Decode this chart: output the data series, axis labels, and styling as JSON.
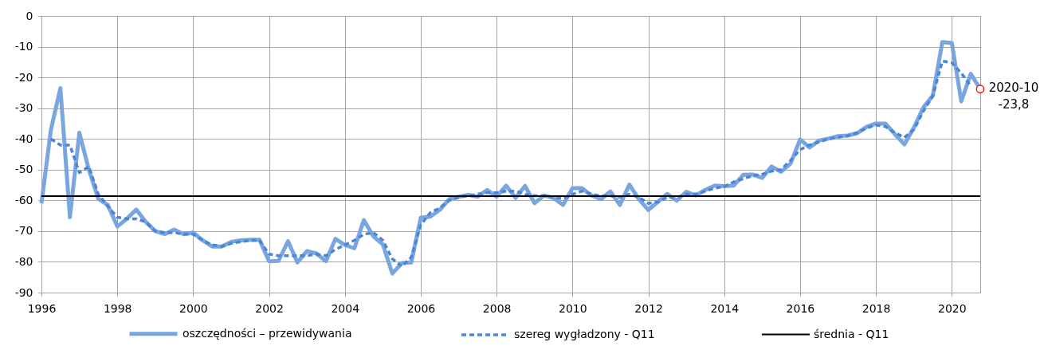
{
  "chart_data": {
    "type": "line",
    "x": [
      1996,
      1996.25,
      1996.5,
      1996.75,
      1997,
      1997.25,
      1997.5,
      1997.75,
      1998,
      1998.25,
      1998.5,
      1998.75,
      1999,
      1999.25,
      1999.5,
      1999.75,
      2000,
      2000.25,
      2000.5,
      2000.75,
      2001,
      2001.25,
      2001.5,
      2001.75,
      2002,
      2002.25,
      2002.5,
      2002.75,
      2003,
      2003.25,
      2003.5,
      2003.75,
      2004,
      2004.25,
      2004.5,
      2004.75,
      2005,
      2005.25,
      2005.5,
      2005.75,
      2006,
      2006.25,
      2006.5,
      2006.75,
      2007,
      2007.25,
      2007.5,
      2007.75,
      2008,
      2008.25,
      2008.5,
      2008.75,
      2009,
      2009.25,
      2009.5,
      2009.75,
      2010,
      2010.25,
      2010.5,
      2010.75,
      2011,
      2011.25,
      2011.5,
      2011.75,
      2012,
      2012.25,
      2012.5,
      2012.75,
      2013,
      2013.25,
      2013.5,
      2013.75,
      2014,
      2014.25,
      2014.5,
      2014.75,
      2015,
      2015.25,
      2015.5,
      2015.75,
      2016,
      2016.25,
      2016.5,
      2016.75,
      2017,
      2017.25,
      2017.5,
      2017.75,
      2018,
      2018.25,
      2018.5,
      2018.75,
      2019,
      2019.25,
      2019.5,
      2019.75,
      2020,
      2020.25,
      2020.5,
      2020.75
    ],
    "series": [
      {
        "name": "oszczędności – przewidywania",
        "color": "#7aa6e0",
        "line_style": "solid",
        "values": [
          -61,
          -37,
          -23.5,
          -65.5,
          -38,
          -50,
          -59.5,
          -61.5,
          -68.5,
          -66,
          -63,
          -67,
          -70,
          -71,
          -69.5,
          -71,
          -70.5,
          -73,
          -75,
          -75,
          -73.5,
          -73,
          -72.8,
          -72.8,
          -79.8,
          -79.7,
          -73.3,
          -80.2,
          -76.5,
          -77.3,
          -79.8,
          -72.5,
          -74.5,
          -75.6,
          -66.4,
          -71.7,
          -74.3,
          -83.8,
          -80.4,
          -80.2,
          -65.7,
          -65.3,
          -63.1,
          -59.6,
          -58.8,
          -58.2,
          -58.8,
          -56.6,
          -58.8,
          -55.2,
          -59.2,
          -55.3,
          -60.9,
          -58.4,
          -59.2,
          -61.5,
          -56,
          -56,
          -58.4,
          -59.6,
          -57.1,
          -61.5,
          -54.9,
          -59.6,
          -63.1,
          -60.5,
          -57.9,
          -60.1,
          -57.2,
          -58.4,
          -56.6,
          -55.2,
          -55.4,
          -55.2,
          -51.7,
          -51.6,
          -52.7,
          -49,
          -50.7,
          -48,
          -40.2,
          -42.8,
          -40.5,
          -39.9,
          -39.1,
          -38.9,
          -38.2,
          -36.1,
          -35,
          -35,
          -38.5,
          -41.8,
          -36.3,
          -29.8,
          -25.9,
          -8.5,
          -8.8,
          -27.8,
          -18.8,
          -23.8
        ]
      },
      {
        "name": "szereg wygładzony - Q11",
        "color": "#4a86d8",
        "line_style": "dashed",
        "values": [
          null,
          -40,
          -42,
          -42,
          -51,
          -49,
          -58,
          -62,
          -65.5,
          -66,
          -66,
          -67,
          -70,
          -70.5,
          -70.5,
          -71,
          -71,
          -73,
          -74.5,
          -75,
          -74,
          -73.5,
          -73,
          -73,
          -77.5,
          -78,
          -78,
          -78,
          -78,
          -77.5,
          -78,
          -76,
          -74.5,
          -73,
          -71,
          -70.5,
          -73,
          -79,
          -81.5,
          -78.5,
          -68,
          -64,
          -62.5,
          -60,
          -59,
          -58.5,
          -58,
          -57.5,
          -57.5,
          -57,
          -57,
          -58,
          -58.5,
          -58.5,
          -59,
          -59.5,
          -58,
          -57,
          -58,
          -58.5,
          -58.5,
          -59,
          -58,
          -59,
          -61,
          -60.5,
          -59,
          -59,
          -58,
          -58,
          -57,
          -56,
          -55.5,
          -54,
          -53,
          -52,
          -51.5,
          -50.5,
          -50,
          -47,
          -43.5,
          -42,
          -41,
          -40,
          -39.5,
          -39,
          -38,
          -36.5,
          -35.5,
          -36,
          -38,
          -39.5,
          -37,
          -31,
          -26,
          -14.7,
          -15.2,
          -18.6,
          -22.8,
          null
        ]
      }
    ],
    "ref_lines": [
      {
        "axis": "y",
        "value": -58.6,
        "label": "średnia - Q11",
        "color": "#000000",
        "line_style": "solid"
      }
    ],
    "annotations": [
      {
        "text": "2020-10",
        "x": 2020.75,
        "y": -23.8
      },
      {
        "text": "-23,8",
        "x": 2020.75,
        "y": -23.8
      }
    ],
    "xlim": [
      1996,
      2020.75
    ],
    "xticks": [
      1996,
      1998,
      2000,
      2002,
      2004,
      2006,
      2008,
      2010,
      2012,
      2014,
      2016,
      2018,
      2020
    ],
    "ylim": [
      -90,
      0
    ],
    "yticks": [
      -90,
      -80,
      -70,
      -60,
      -50,
      -40,
      -30,
      -20,
      -10,
      0
    ],
    "grid": true,
    "legend": "bottom"
  }
}
